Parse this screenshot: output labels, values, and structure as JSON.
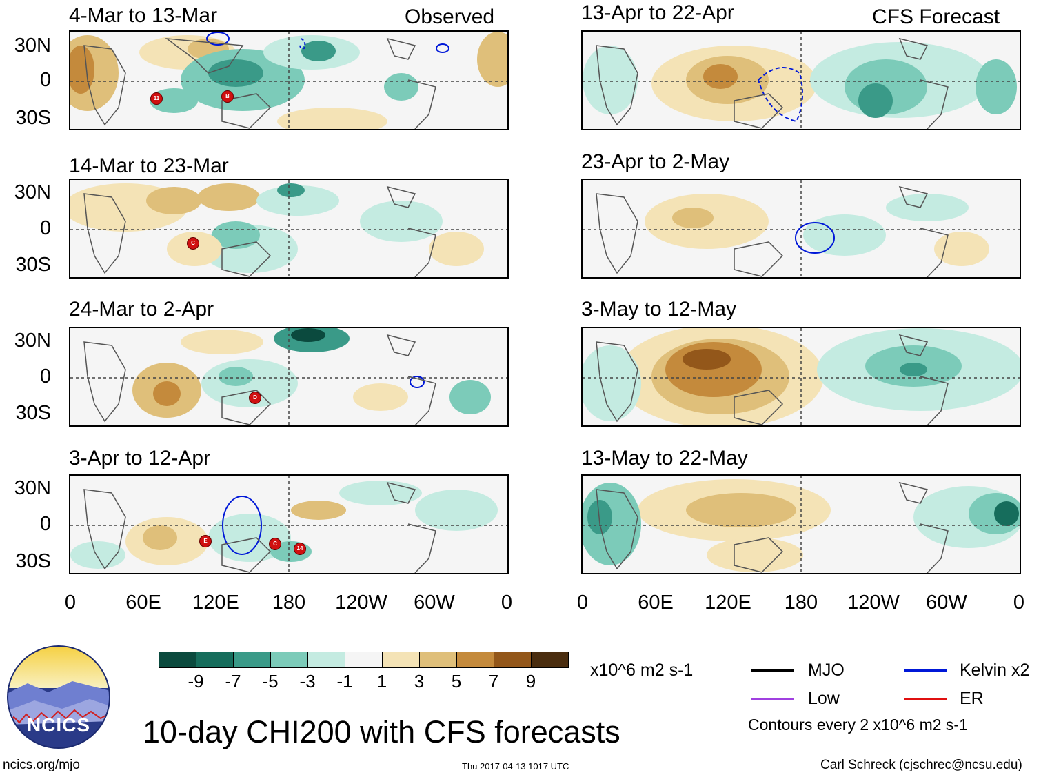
{
  "observed_label": "Observed",
  "forecast_label": "CFS Forecast",
  "panels_left": [
    {
      "title": "4-Mar to 13-Mar"
    },
    {
      "title": "14-Mar to 23-Mar"
    },
    {
      "title": "24-Mar to 2-Apr"
    },
    {
      "title": "3-Apr to 12-Apr"
    }
  ],
  "panels_right": [
    {
      "title": "13-Apr to 22-Apr"
    },
    {
      "title": "23-Apr to 2-May"
    },
    {
      "title": "3-May to 12-May"
    },
    {
      "title": "13-May to 22-May"
    }
  ],
  "lat_labels": [
    "30N",
    "0",
    "30S"
  ],
  "lon_labels": [
    "0",
    "60E",
    "120E",
    "180",
    "120W",
    "60W",
    "0"
  ],
  "colorbar": {
    "colors": [
      "#0b4a3e",
      "#166d5c",
      "#3a9a88",
      "#7ccbb9",
      "#c4ebe1",
      "#f5f5f5",
      "#f4e3b6",
      "#dfbf7a",
      "#c48a3c",
      "#93571a",
      "#4a2d0f"
    ],
    "labels": [
      "-9",
      "-7",
      "-5",
      "-3",
      "-1",
      "1",
      "3",
      "5",
      "7",
      "9"
    ]
  },
  "units": "x10^6 m2 s-1",
  "legend": {
    "mjo": "MJO",
    "kelvin": "Kelvin x2",
    "low": "Low",
    "er": "ER",
    "contours": "Contours every 2 x10^6 m2 s-1",
    "colors": {
      "mjo": "#000000",
      "kelvin": "#0018d8",
      "low": "#a040e0",
      "er": "#e01010"
    }
  },
  "logo_text": "NCICS",
  "main_title": "10-day CHI200 with CFS forecasts",
  "footer": {
    "url": "ncics.org/mjo",
    "timestamp": "Thu 2017-04-13 1017 UTC",
    "author": "Carl Schreck (cjschrec@ncsu.edu)"
  },
  "tc_markers": [
    {
      "panel": 0,
      "label": "11"
    },
    {
      "panel": 0,
      "label": "B"
    },
    {
      "panel": 1,
      "label": "C"
    },
    {
      "panel": 2,
      "label": "D"
    },
    {
      "panel": 3,
      "label": "E"
    },
    {
      "panel": 3,
      "label": "C"
    },
    {
      "panel": 3,
      "label": "14"
    }
  ]
}
